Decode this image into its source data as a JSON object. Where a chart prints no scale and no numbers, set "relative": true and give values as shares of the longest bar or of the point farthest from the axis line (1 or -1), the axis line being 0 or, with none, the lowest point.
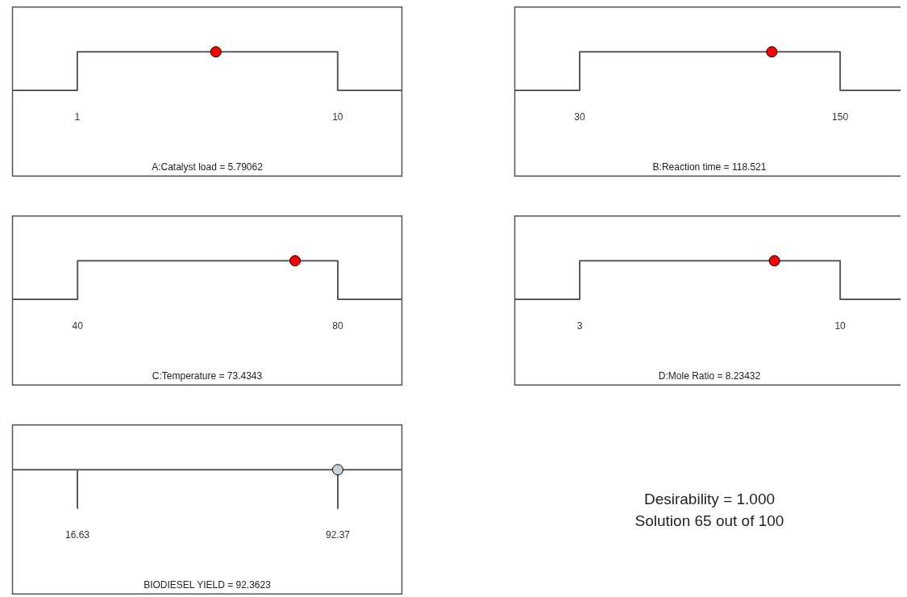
{
  "chart_data": [
    {
      "type": "line",
      "relative": true,
      "xlabel": "A:Catalyst load = 5.79062",
      "xlim": [
        -1.24,
        12.22
      ],
      "xticks": [
        1,
        10
      ],
      "series": [
        {
          "type": "line",
          "color": "#595959",
          "x": [
            -1.24,
            1,
            1,
            10,
            10,
            12.22
          ],
          "values": [
            0,
            0,
            1,
            1,
            0,
            0
          ]
        },
        {
          "type": "scatter",
          "color": "#ff0000",
          "x": [
            5.79062
          ],
          "values": [
            1
          ]
        }
      ]
    },
    {
      "type": "line",
      "relative": true,
      "xlabel": "B:Reaction time = 118.521",
      "xlim": [
        0.1,
        179.5
      ],
      "xticks": [
        30,
        150
      ],
      "series": [
        {
          "type": "line",
          "color": "#595959",
          "x": [
            0.1,
            30,
            30,
            150,
            150,
            179.5
          ],
          "values": [
            0,
            0,
            1,
            1,
            0,
            0
          ]
        },
        {
          "type": "scatter",
          "color": "#ff0000",
          "x": [
            118.521
          ],
          "values": [
            1
          ]
        }
      ]
    },
    {
      "type": "line",
      "relative": true,
      "xlabel": "C:Temperature = 73.4343",
      "xlim": [
        30,
        89.85
      ],
      "xticks": [
        40,
        80
      ],
      "series": [
        {
          "type": "line",
          "color": "#595959",
          "x": [
            30,
            40,
            40,
            80,
            80,
            89.85
          ],
          "values": [
            0,
            0,
            1,
            1,
            0,
            0
          ]
        },
        {
          "type": "scatter",
          "color": "#ff0000",
          "x": [
            73.4343
          ],
          "values": [
            1
          ]
        }
      ]
    },
    {
      "type": "line",
      "relative": true,
      "xlabel": "D:Mole Ratio = 8.23432",
      "xlim": [
        1.255,
        11.72
      ],
      "xticks": [
        3,
        10
      ],
      "series": [
        {
          "type": "line",
          "color": "#595959",
          "x": [
            1.255,
            3,
            3,
            10,
            10,
            11.72
          ],
          "values": [
            0,
            0,
            1,
            1,
            0,
            0
          ]
        },
        {
          "type": "scatter",
          "color": "#ff0000",
          "x": [
            8.23432
          ],
          "values": [
            1
          ]
        }
      ]
    },
    {
      "type": "line",
      "relative": true,
      "xlabel": "BIODIESEL YIELD = 92.3623",
      "xlim": [
        -2.25,
        111.02
      ],
      "xticks": [
        16.63,
        92.37
      ],
      "series": [
        {
          "type": "line",
          "color": "#595959",
          "x": [
            -2.25,
            16.63,
            16.63,
            16.63,
            92.37,
            92.37,
            92.37,
            111.02
          ],
          "values": [
            1,
            1,
            0,
            1,
            1,
            0,
            1,
            1
          ]
        },
        {
          "type": "scatter",
          "color": "#c8d0dc",
          "x": [
            92.3623
          ],
          "values": [
            1
          ]
        }
      ]
    },
    {
      "type": "other",
      "annotations": [
        "Desirability = 1.000",
        "Solution 65 out of 100"
      ]
    }
  ]
}
